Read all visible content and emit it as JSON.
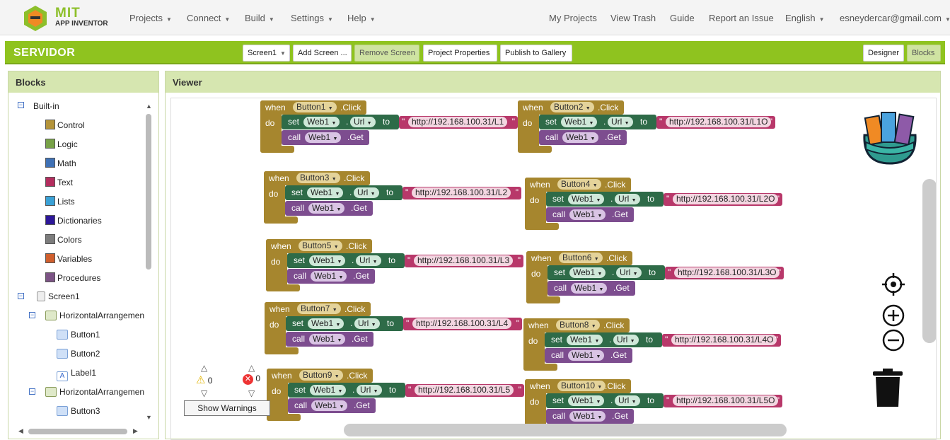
{
  "brand": {
    "mit": "MIT",
    "app_inventor": "APP INVENTOR"
  },
  "nav_left": [
    {
      "label": "Projects"
    },
    {
      "label": "Connect"
    },
    {
      "label": "Build"
    },
    {
      "label": "Settings"
    },
    {
      "label": "Help"
    }
  ],
  "nav_right": {
    "my_projects": "My Projects",
    "view_trash": "View Trash",
    "guide": "Guide",
    "report": "Report an Issue",
    "language": "English",
    "account": "esneydercar@gmail.com"
  },
  "project": {
    "name": "SERVIDOR",
    "screen": "Screen1",
    "add_screen": "Add Screen ...",
    "remove_screen": "Remove Screen",
    "properties": "Project Properties",
    "publish": "Publish to Gallery",
    "designer": "Designer",
    "blocks": "Blocks"
  },
  "blocks_panel": {
    "title": "Blocks",
    "builtin": "Built-in",
    "categories": [
      {
        "label": "Control",
        "color": "#b4943a"
      },
      {
        "label": "Logic",
        "color": "#78a248"
      },
      {
        "label": "Math",
        "color": "#3f71b5"
      },
      {
        "label": "Text",
        "color": "#b32d5e"
      },
      {
        "label": "Lists",
        "color": "#3aa1d6"
      },
      {
        "label": "Dictionaries",
        "color": "#2d1799"
      },
      {
        "label": "Colors",
        "color": "#7c7c7c"
      },
      {
        "label": "Variables",
        "color": "#d05f2d"
      },
      {
        "label": "Procedures",
        "color": "#7c5385"
      }
    ],
    "screen": "Screen1",
    "arr1": "HorizontalArrangemen",
    "arr1_items": [
      "Button1",
      "Button2",
      "Label1"
    ],
    "arr2": "HorizontalArrangemen",
    "arr2_items": [
      "Button3"
    ]
  },
  "viewer": {
    "title": "Viewer",
    "warnings": "0",
    "errors": "0",
    "show_warnings": "Show Warnings"
  },
  "kw": {
    "when": "when",
    "do": "do",
    "set": "set",
    "call": "call",
    "to": "to",
    "click": ".Click",
    "url": "Url",
    "get": ".Get",
    "web": "Web1",
    "dot": ".",
    "q": "\""
  },
  "handlers": [
    {
      "button": "Button1",
      "url": "http://192.168.100.31/L1"
    },
    {
      "button": "Button2",
      "url": "http://192.168.100.31/L1O"
    },
    {
      "button": "Button3",
      "url": "http://192.168.100.31/L2"
    },
    {
      "button": "Button4",
      "url": "http://192.168.100.31/L2O"
    },
    {
      "button": "Button5",
      "url": "http://192.168.100.31/L3"
    },
    {
      "button": "Button6",
      "url": "http://192.168.100.31/L3O"
    },
    {
      "button": "Button7",
      "url": "http://192.168.100.31/L4"
    },
    {
      "button": "Button8",
      "url": "http://192.168.100.31/L4O"
    },
    {
      "button": "Button9",
      "url": "http://192.168.100.31/L5"
    },
    {
      "button": "Button10",
      "url": "http://192.168.100.31/L5O"
    }
  ],
  "icons": {
    "backpack": "backpack-icon",
    "center": "crosshair-icon",
    "zoom_in": "zoom-in-icon",
    "zoom_out": "zoom-out-icon",
    "trash": "trash-icon",
    "warning": "warning-icon",
    "error": "error-icon"
  }
}
